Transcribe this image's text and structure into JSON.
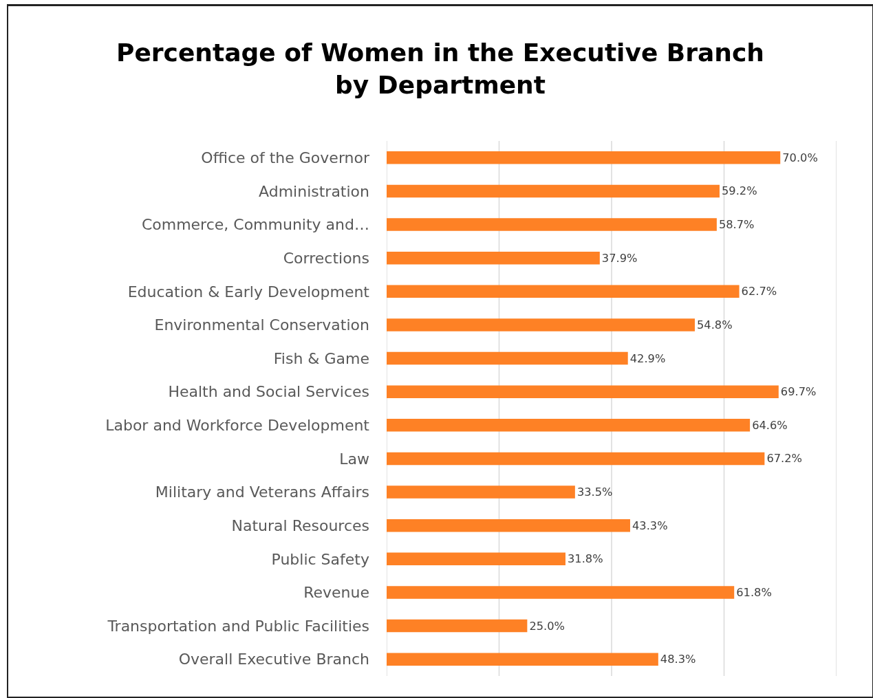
{
  "chart_data": {
    "type": "bar",
    "orientation": "horizontal",
    "title": "Percentage of Women in the Executive Branch\nby Department",
    "categories": [
      "Office of the Governor",
      "Administration",
      "Commerce, Community and…",
      "Corrections",
      "Education & Early Development",
      "Environmental Conservation",
      "Fish & Game",
      "Health and Social Services",
      "Labor and Workforce Development",
      "Law",
      "Military and Veterans Affairs",
      "Natural Resources",
      "Public Safety",
      "Revenue",
      "Transportation and Public Facilities",
      "Overall Executive Branch"
    ],
    "values": [
      70.0,
      59.2,
      58.7,
      37.9,
      62.7,
      54.8,
      42.9,
      69.7,
      64.6,
      67.2,
      33.5,
      43.3,
      31.8,
      61.8,
      25.0,
      48.3
    ],
    "value_labels": [
      "70.0%",
      "59.2%",
      "58.7%",
      "37.9%",
      "62.7%",
      "54.8%",
      "42.9%",
      "69.7%",
      "64.6%",
      "67.2%",
      "33.5%",
      "43.3%",
      "31.8%",
      "61.8%",
      "25.0%",
      "48.3%"
    ],
    "color": "#fe8125",
    "xlim": [
      0,
      80
    ],
    "xticks": [
      {
        "value": 0,
        "label": null
      },
      {
        "value": 20,
        "label": null
      },
      {
        "value": 40,
        "label": null
      },
      {
        "value": 60,
        "label": null
      },
      {
        "value": 80,
        "label": null
      }
    ],
    "grid": "x",
    "tick_labels": "y",
    "legend": false
  }
}
